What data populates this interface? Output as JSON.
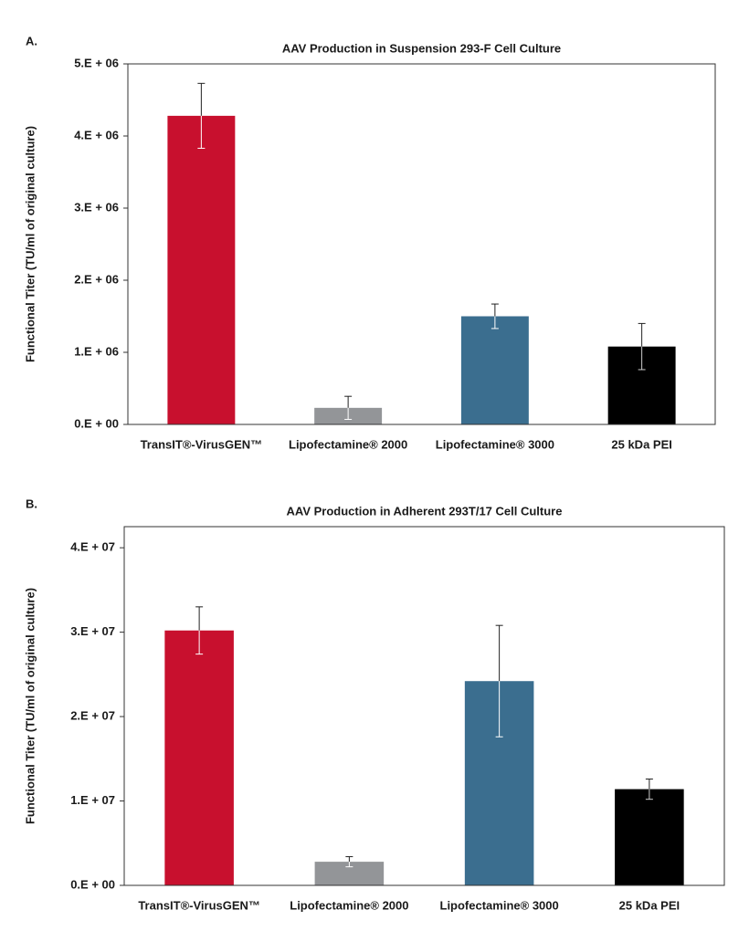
{
  "chart_data": [
    {
      "type": "bar",
      "panel_label": "A.",
      "title": "AAV Production in Suspension 293-F Cell Culture",
      "y_label": "Functional Titer (TU/ml of original culture)",
      "categories": [
        "TransIT®-VirusGEN™",
        "Lipofectamine® 2000",
        "Lipofectamine® 3000",
        "25 kDa PEI"
      ],
      "values": [
        4280000,
        230000,
        1500000,
        1080000
      ],
      "errors": [
        450000,
        160000,
        170000,
        320000
      ],
      "colors": [
        "#c8102e",
        "#939598",
        "#3b6e8f",
        "#000000"
      ],
      "ylim": [
        0,
        5000000
      ],
      "yticks": [
        {
          "value": 0,
          "label": "0.E + 00"
        },
        {
          "value": 1000000,
          "label": "1.E + 06"
        },
        {
          "value": 2000000,
          "label": "2.E + 06"
        },
        {
          "value": 3000000,
          "label": "3.E + 06"
        },
        {
          "value": 4000000,
          "label": "4.E + 06"
        },
        {
          "value": 5000000,
          "label": "5.E + 06"
        }
      ]
    },
    {
      "type": "bar",
      "panel_label": "B.",
      "title": "AAV Production in Adherent 293T/17 Cell Culture",
      "y_label": "Functional Titer (TU/ml of original culture)",
      "categories": [
        "TransIT®-VirusGEN™",
        "Lipofectamine® 2000",
        "Lipofectamine® 3000",
        "25 kDa PEI"
      ],
      "values": [
        30200000,
        2800000,
        24200000,
        11400000
      ],
      "errors": [
        2800000,
        600000,
        6600000,
        1200000
      ],
      "colors": [
        "#c8102e",
        "#939598",
        "#3b6e8f",
        "#000000"
      ],
      "ylim": [
        0,
        42500000
      ],
      "yticks": [
        {
          "value": 0,
          "label": "0.E + 00"
        },
        {
          "value": 10000000,
          "label": "1.E + 07"
        },
        {
          "value": 20000000,
          "label": "2.E + 07"
        },
        {
          "value": 30000000,
          "label": "3.E + 07"
        },
        {
          "value": 40000000,
          "label": "4.E + 07"
        }
      ]
    }
  ]
}
